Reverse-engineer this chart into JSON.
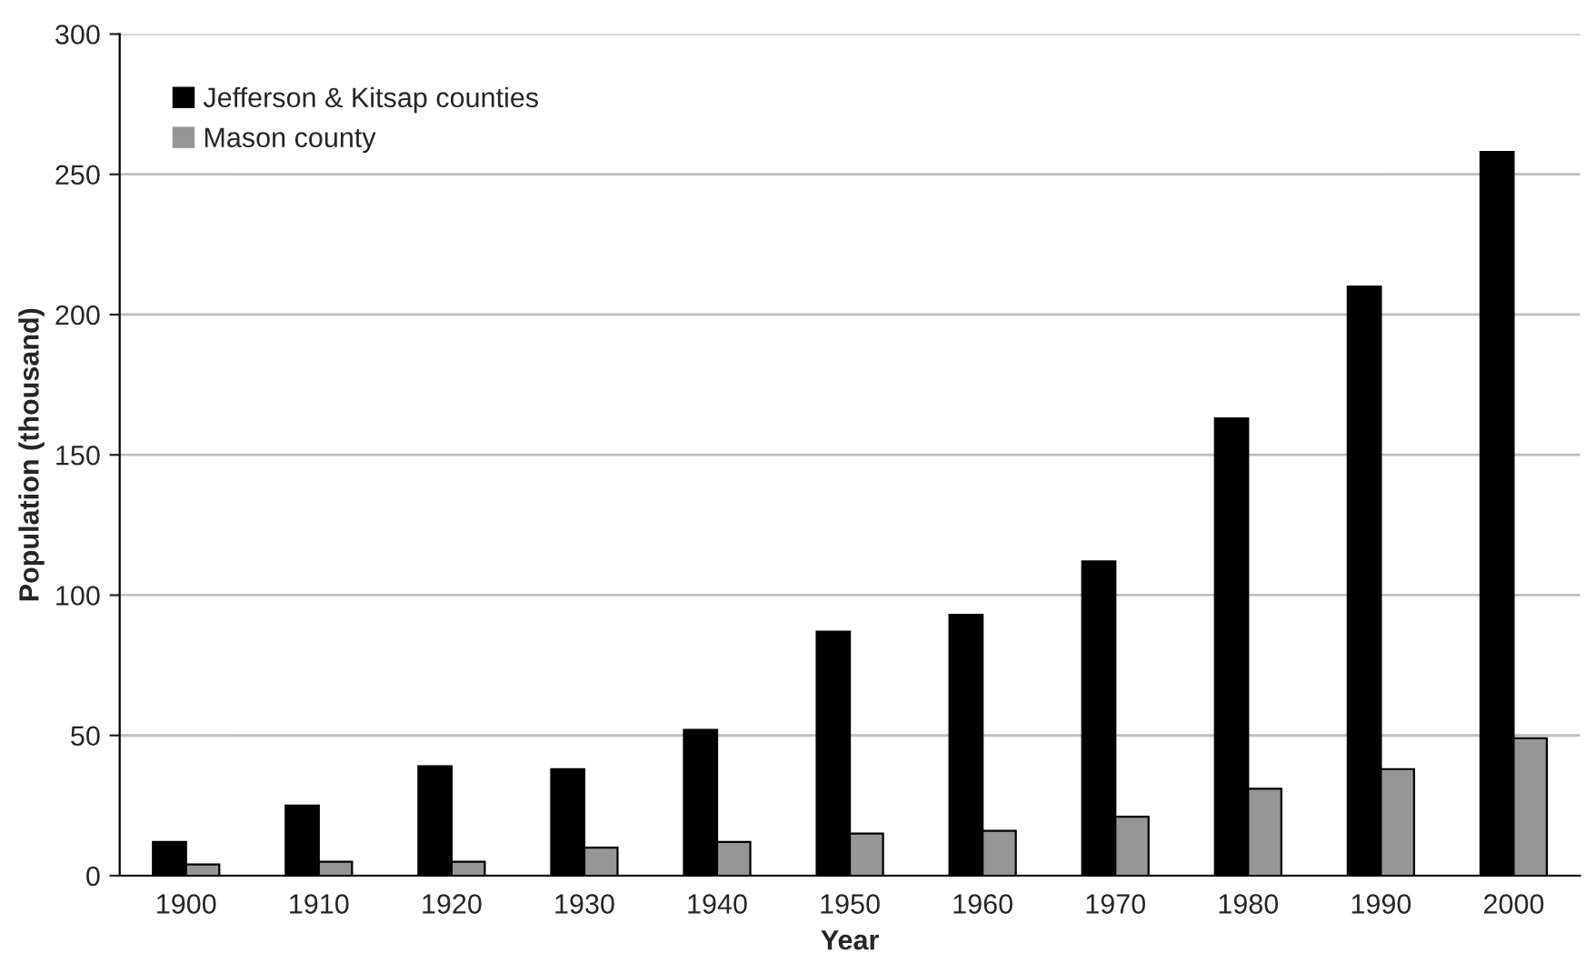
{
  "chart_data": {
    "type": "bar",
    "xlabel": "Year",
    "ylabel": "Population (thousand)",
    "categories": [
      "1900",
      "1910",
      "1920",
      "1930",
      "1940",
      "1950",
      "1960",
      "1970",
      "1980",
      "1990",
      "2000"
    ],
    "series": [
      {
        "name": "Jefferson & Kitsap counties",
        "color": "#000000",
        "values": [
          12,
          25,
          39,
          38,
          52,
          87,
          93,
          112,
          163,
          210,
          258
        ]
      },
      {
        "name": "Mason county",
        "color": "#969696",
        "values": [
          4,
          5,
          5,
          10,
          12,
          15,
          16,
          21,
          31,
          38,
          49
        ]
      }
    ],
    "ylim": [
      0,
      300
    ],
    "yticks": [
      0,
      50,
      100,
      150,
      200,
      250,
      300
    ],
    "grid": "y",
    "legend": "top left"
  }
}
